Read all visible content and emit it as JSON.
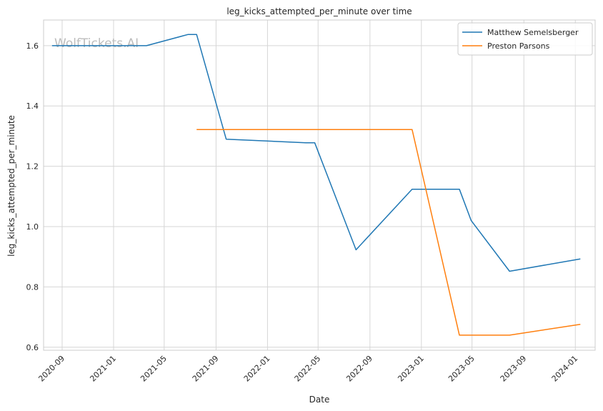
{
  "chart_data": {
    "type": "line",
    "title": "leg_kicks_attempted_per_minute over time",
    "xlabel": "Date",
    "ylabel": "leg_kicks_attempted_per_minute",
    "watermark": "WolfTickets.AI",
    "x_tick_labels": [
      "2020-09",
      "2021-01",
      "2021-05",
      "2021-09",
      "2022-01",
      "2022-05",
      "2022-09",
      "2023-01",
      "2023-05",
      "2023-09",
      "2024-01"
    ],
    "y_tick_labels": [
      "0.6",
      "0.8",
      "1.0",
      "1.2",
      "1.4",
      "1.6"
    ],
    "ylim": [
      0.59,
      1.685
    ],
    "xlim": [
      "2020-07-19",
      "2024-02-17"
    ],
    "grid": true,
    "legend_position": "top-right",
    "series": [
      {
        "name": "Matthew Semelsberger",
        "color": "#1f77b4",
        "points": [
          {
            "x": "2020-08-08",
            "y": 1.6
          },
          {
            "x": "2021-03-20",
            "y": 1.6
          },
          {
            "x": "2021-06-26",
            "y": 1.637
          },
          {
            "x": "2021-07-17",
            "y": 1.637
          },
          {
            "x": "2021-09-25",
            "y": 1.29
          },
          {
            "x": "2022-04-02",
            "y": 1.278
          },
          {
            "x": "2022-04-23",
            "y": 1.278
          },
          {
            "x": "2022-07-30",
            "y": 0.923
          },
          {
            "x": "2022-12-10",
            "y": 1.124
          },
          {
            "x": "2023-04-01",
            "y": 1.124
          },
          {
            "x": "2023-04-29",
            "y": 1.02
          },
          {
            "x": "2023-07-29",
            "y": 0.852
          },
          {
            "x": "2024-01-13",
            "y": 0.893
          }
        ]
      },
      {
        "name": "Preston Parsons",
        "color": "#ff7f0e",
        "points": [
          {
            "x": "2021-07-17",
            "y": 1.322
          },
          {
            "x": "2022-12-10",
            "y": 1.322
          },
          {
            "x": "2023-04-01",
            "y": 0.64
          },
          {
            "x": "2023-07-29",
            "y": 0.64
          },
          {
            "x": "2024-01-13",
            "y": 0.676
          }
        ]
      }
    ]
  }
}
